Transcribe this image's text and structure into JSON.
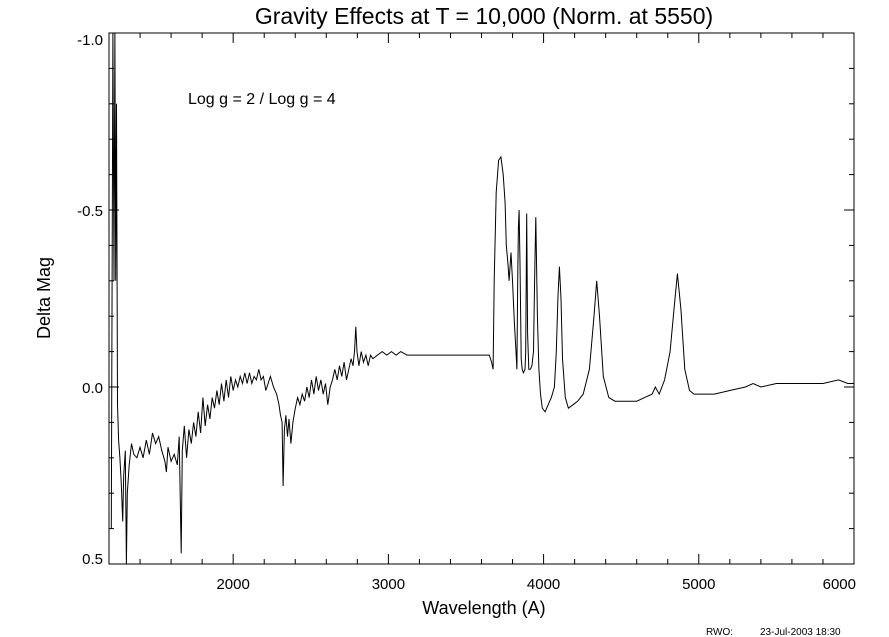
{
  "chart_data": {
    "type": "line",
    "title": "Gravity Effects at T = 10,000 (Norm. at 5550)",
    "xlabel": "Wavelength (A)",
    "ylabel": "Delta Mag",
    "annotation": "Log g = 2 / Log g = 4",
    "xlim": [
      1200,
      6000
    ],
    "ylim": [
      0.5,
      -1.0
    ],
    "y_inverted": true,
    "x_ticks": [
      2000,
      3000,
      4000,
      5000,
      6000
    ],
    "y_ticks": [
      {
        "value": -1.0,
        "label": "-1.0"
      },
      {
        "value": -0.5,
        "label": "-0.5"
      },
      {
        "value": 0.0,
        "label": "0.0"
      },
      {
        "value": 0.5,
        "label": "0.5"
      }
    ],
    "series": [
      {
        "color": "#000000",
        "points": [
          [
            1215,
            0.4
          ],
          [
            1225,
            -1.0
          ],
          [
            1232,
            -0.3
          ],
          [
            1238,
            -1.0
          ],
          [
            1243,
            -0.3
          ],
          [
            1248,
            -0.8
          ],
          [
            1255,
            0.05
          ],
          [
            1262,
            0.15
          ],
          [
            1270,
            0.2
          ],
          [
            1280,
            0.28
          ],
          [
            1288,
            0.38
          ],
          [
            1295,
            0.25
          ],
          [
            1305,
            0.18
          ],
          [
            1312,
            0.5
          ],
          [
            1318,
            0.3
          ],
          [
            1330,
            0.22
          ],
          [
            1345,
            0.16
          ],
          [
            1360,
            0.19
          ],
          [
            1380,
            0.2
          ],
          [
            1400,
            0.17
          ],
          [
            1420,
            0.2
          ],
          [
            1440,
            0.15
          ],
          [
            1460,
            0.19
          ],
          [
            1480,
            0.13
          ],
          [
            1500,
            0.16
          ],
          [
            1520,
            0.14
          ],
          [
            1540,
            0.18
          ],
          [
            1560,
            0.21
          ],
          [
            1570,
            0.24
          ],
          [
            1580,
            0.17
          ],
          [
            1600,
            0.21
          ],
          [
            1620,
            0.19
          ],
          [
            1640,
            0.22
          ],
          [
            1652,
            0.14
          ],
          [
            1665,
            0.47
          ],
          [
            1672,
            0.18
          ],
          [
            1685,
            0.11
          ],
          [
            1700,
            0.2
          ],
          [
            1715,
            0.12
          ],
          [
            1730,
            0.16
          ],
          [
            1745,
            0.1
          ],
          [
            1760,
            0.14
          ],
          [
            1775,
            0.07
          ],
          [
            1790,
            0.13
          ],
          [
            1805,
            0.03
          ],
          [
            1820,
            0.11
          ],
          [
            1835,
            0.05
          ],
          [
            1850,
            0.09
          ],
          [
            1865,
            0.03
          ],
          [
            1880,
            0.06
          ],
          [
            1895,
            0.01
          ],
          [
            1910,
            0.05
          ],
          [
            1925,
            -0.01
          ],
          [
            1940,
            0.04
          ],
          [
            1955,
            -0.02
          ],
          [
            1970,
            0.03
          ],
          [
            1985,
            -0.03
          ],
          [
            2000,
            0.01
          ],
          [
            2015,
            -0.02
          ],
          [
            2030,
            0.0
          ],
          [
            2045,
            -0.03
          ],
          [
            2060,
            -0.01
          ],
          [
            2075,
            -0.04
          ],
          [
            2090,
            -0.01
          ],
          [
            2105,
            -0.04
          ],
          [
            2120,
            -0.01
          ],
          [
            2135,
            -0.03
          ],
          [
            2150,
            -0.02
          ],
          [
            2165,
            -0.05
          ],
          [
            2180,
            -0.02
          ],
          [
            2195,
            -0.03
          ],
          [
            2210,
            0.01
          ],
          [
            2225,
            -0.01
          ],
          [
            2240,
            -0.03
          ],
          [
            2260,
            0.0
          ],
          [
            2280,
            0.02
          ],
          [
            2295,
            0.05
          ],
          [
            2305,
            0.08
          ],
          [
            2315,
            0.1
          ],
          [
            2322,
            0.28
          ],
          [
            2330,
            0.12
          ],
          [
            2340,
            0.08
          ],
          [
            2350,
            0.14
          ],
          [
            2360,
            0.09
          ],
          [
            2372,
            0.16
          ],
          [
            2385,
            0.1
          ],
          [
            2400,
            0.06
          ],
          [
            2415,
            0.03
          ],
          [
            2430,
            0.05
          ],
          [
            2445,
            0.02
          ],
          [
            2460,
            0.04
          ],
          [
            2475,
            0.0
          ],
          [
            2490,
            0.03
          ],
          [
            2505,
            -0.02
          ],
          [
            2520,
            0.02
          ],
          [
            2535,
            -0.03
          ],
          [
            2550,
            0.01
          ],
          [
            2565,
            -0.02
          ],
          [
            2580,
            0.02
          ],
          [
            2595,
            -0.01
          ],
          [
            2610,
            0.05
          ],
          [
            2625,
            0.0
          ],
          [
            2640,
            -0.02
          ],
          [
            2655,
            -0.05
          ],
          [
            2670,
            -0.02
          ],
          [
            2685,
            -0.06
          ],
          [
            2700,
            -0.03
          ],
          [
            2715,
            -0.07
          ],
          [
            2730,
            -0.02
          ],
          [
            2745,
            -0.05
          ],
          [
            2760,
            -0.08
          ],
          [
            2772,
            -0.06
          ],
          [
            2782,
            -0.1
          ],
          [
            2790,
            -0.17
          ],
          [
            2798,
            -0.1
          ],
          [
            2810,
            -0.06
          ],
          [
            2825,
            -0.1
          ],
          [
            2840,
            -0.07
          ],
          [
            2855,
            -0.09
          ],
          [
            2870,
            -0.06
          ],
          [
            2885,
            -0.09
          ],
          [
            2900,
            -0.08
          ],
          [
            2930,
            -0.09
          ],
          [
            2960,
            -0.1
          ],
          [
            2990,
            -0.09
          ],
          [
            3020,
            -0.1
          ],
          [
            3050,
            -0.09
          ],
          [
            3080,
            -0.1
          ],
          [
            3120,
            -0.09
          ],
          [
            3160,
            -0.09
          ],
          [
            3200,
            -0.09
          ],
          [
            3250,
            -0.09
          ],
          [
            3300,
            -0.09
          ],
          [
            3350,
            -0.09
          ],
          [
            3400,
            -0.09
          ],
          [
            3450,
            -0.09
          ],
          [
            3500,
            -0.09
          ],
          [
            3550,
            -0.09
          ],
          [
            3600,
            -0.09
          ],
          [
            3650,
            -0.09
          ],
          [
            3665,
            -0.07
          ],
          [
            3675,
            -0.05
          ],
          [
            3682,
            -0.3
          ],
          [
            3695,
            -0.55
          ],
          [
            3710,
            -0.64
          ],
          [
            3725,
            -0.65
          ],
          [
            3740,
            -0.6
          ],
          [
            3752,
            -0.52
          ],
          [
            3760,
            -0.4
          ],
          [
            3770,
            -0.35
          ],
          [
            3778,
            -0.3
          ],
          [
            3790,
            -0.38
          ],
          [
            3800,
            -0.3
          ],
          [
            3812,
            -0.18
          ],
          [
            3822,
            -0.1
          ],
          [
            3828,
            -0.05
          ],
          [
            3833,
            -0.3
          ],
          [
            3838,
            -0.45
          ],
          [
            3842,
            -0.5
          ],
          [
            3848,
            -0.35
          ],
          [
            3856,
            -0.08
          ],
          [
            3862,
            -0.05
          ],
          [
            3870,
            -0.04
          ],
          [
            3880,
            -0.05
          ],
          [
            3885,
            -0.1
          ],
          [
            3891,
            -0.49
          ],
          [
            3897,
            -0.15
          ],
          [
            3905,
            -0.05
          ],
          [
            3915,
            -0.05
          ],
          [
            3925,
            -0.06
          ],
          [
            3935,
            -0.1
          ],
          [
            3942,
            -0.3
          ],
          [
            3950,
            -0.48
          ],
          [
            3960,
            -0.2
          ],
          [
            3970,
            -0.05
          ],
          [
            3980,
            0.02
          ],
          [
            3992,
            0.06
          ],
          [
            4010,
            0.07
          ],
          [
            4030,
            0.05
          ],
          [
            4050,
            0.03
          ],
          [
            4070,
            0.0
          ],
          [
            4082,
            -0.1
          ],
          [
            4092,
            -0.25
          ],
          [
            4102,
            -0.34
          ],
          [
            4112,
            -0.25
          ],
          [
            4122,
            -0.08
          ],
          [
            4140,
            0.03
          ],
          [
            4160,
            0.06
          ],
          [
            4190,
            0.05
          ],
          [
            4220,
            0.04
          ],
          [
            4255,
            0.02
          ],
          [
            4295,
            -0.05
          ],
          [
            4325,
            -0.2
          ],
          [
            4342,
            -0.3
          ],
          [
            4360,
            -0.2
          ],
          [
            4385,
            -0.03
          ],
          [
            4420,
            0.03
          ],
          [
            4460,
            0.04
          ],
          [
            4500,
            0.04
          ],
          [
            4550,
            0.04
          ],
          [
            4600,
            0.04
          ],
          [
            4650,
            0.03
          ],
          [
            4700,
            0.02
          ],
          [
            4720,
            0.0
          ],
          [
            4745,
            0.02
          ],
          [
            4780,
            -0.02
          ],
          [
            4815,
            -0.1
          ],
          [
            4840,
            -0.22
          ],
          [
            4862,
            -0.32
          ],
          [
            4885,
            -0.22
          ],
          [
            4910,
            -0.05
          ],
          [
            4940,
            0.01
          ],
          [
            4970,
            0.02
          ],
          [
            5020,
            0.02
          ],
          [
            5100,
            0.02
          ],
          [
            5200,
            0.01
          ],
          [
            5300,
            0.0
          ],
          [
            5350,
            -0.01
          ],
          [
            5400,
            0.0
          ],
          [
            5500,
            -0.01
          ],
          [
            5600,
            -0.01
          ],
          [
            5700,
            -0.01
          ],
          [
            5800,
            -0.01
          ],
          [
            5900,
            -0.02
          ],
          [
            5960,
            -0.01
          ],
          [
            6000,
            -0.01
          ]
        ]
      }
    ]
  },
  "footer": {
    "initials": "RWO:",
    "timestamp": "23-Jul-2003 18:30"
  }
}
